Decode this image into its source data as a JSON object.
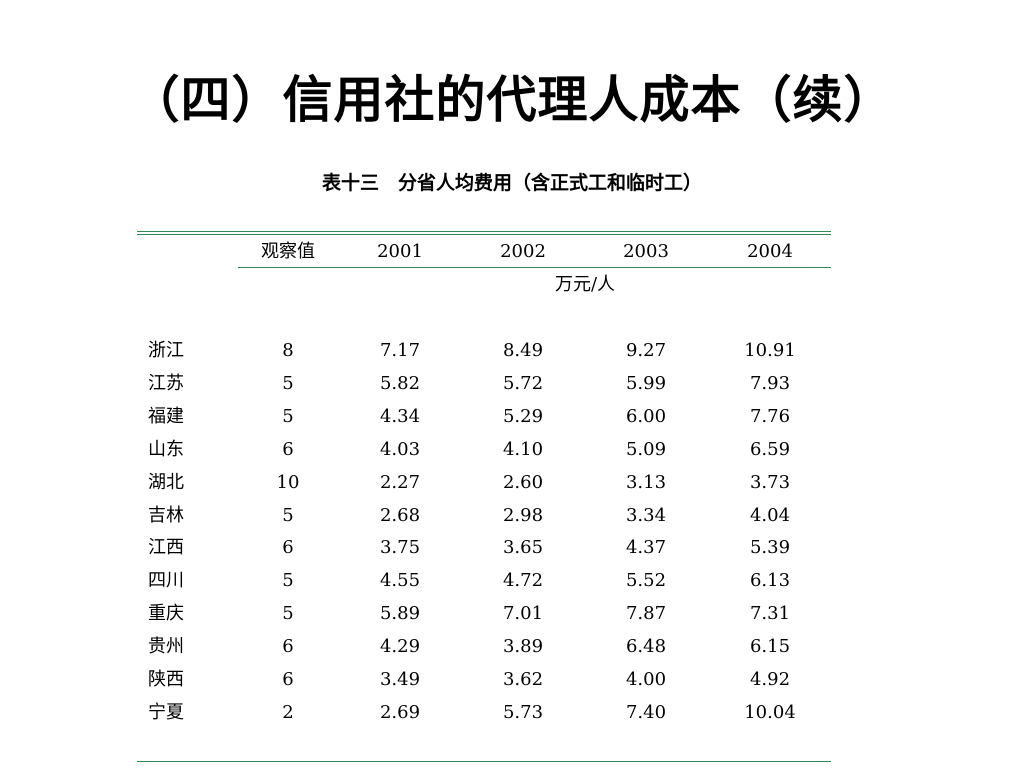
{
  "slide": {
    "title": "（四）信用社的代理人成本（续）",
    "caption": "表十三　分省人均费用（含正式工和临时工）"
  },
  "table": {
    "headers": [
      "观察值",
      "2001",
      "2002",
      "2003",
      "2004"
    ],
    "unit": "万元/人",
    "rows": [
      {
        "province": "浙江",
        "obs": "8",
        "y2001": "7.17",
        "y2002": "8.49",
        "y2003": "9.27",
        "y2004": "10.91"
      },
      {
        "province": "江苏",
        "obs": "5",
        "y2001": "5.82",
        "y2002": "5.72",
        "y2003": "5.99",
        "y2004": "7.93"
      },
      {
        "province": "福建",
        "obs": "5",
        "y2001": "4.34",
        "y2002": "5.29",
        "y2003": "6.00",
        "y2004": "7.76"
      },
      {
        "province": "山东",
        "obs": "6",
        "y2001": "4.03",
        "y2002": "4.10",
        "y2003": "5.09",
        "y2004": "6.59"
      },
      {
        "province": "湖北",
        "obs": "10",
        "y2001": "2.27",
        "y2002": "2.60",
        "y2003": "3.13",
        "y2004": "3.73"
      },
      {
        "province": "吉林",
        "obs": "5",
        "y2001": "2.68",
        "y2002": "2.98",
        "y2003": "3.34",
        "y2004": "4.04"
      },
      {
        "province": "江西",
        "obs": "6",
        "y2001": "3.75",
        "y2002": "3.65",
        "y2003": "4.37",
        "y2004": "5.39"
      },
      {
        "province": "四川",
        "obs": "5",
        "y2001": "4.55",
        "y2002": "4.72",
        "y2003": "5.52",
        "y2004": "6.13"
      },
      {
        "province": "重庆",
        "obs": "5",
        "y2001": "5.89",
        "y2002": "7.01",
        "y2003": "7.87",
        "y2004": "7.31"
      },
      {
        "province": "贵州",
        "obs": "6",
        "y2001": "4.29",
        "y2002": "3.89",
        "y2003": "6.48",
        "y2004": "6.15"
      },
      {
        "province": "陕西",
        "obs": "6",
        "y2001": "3.49",
        "y2002": "3.62",
        "y2003": "4.00",
        "y2004": "4.92"
      },
      {
        "province": "宁夏",
        "obs": "2",
        "y2001": "2.69",
        "y2002": "5.73",
        "y2003": "7.40",
        "y2004": "10.04"
      }
    ]
  }
}
